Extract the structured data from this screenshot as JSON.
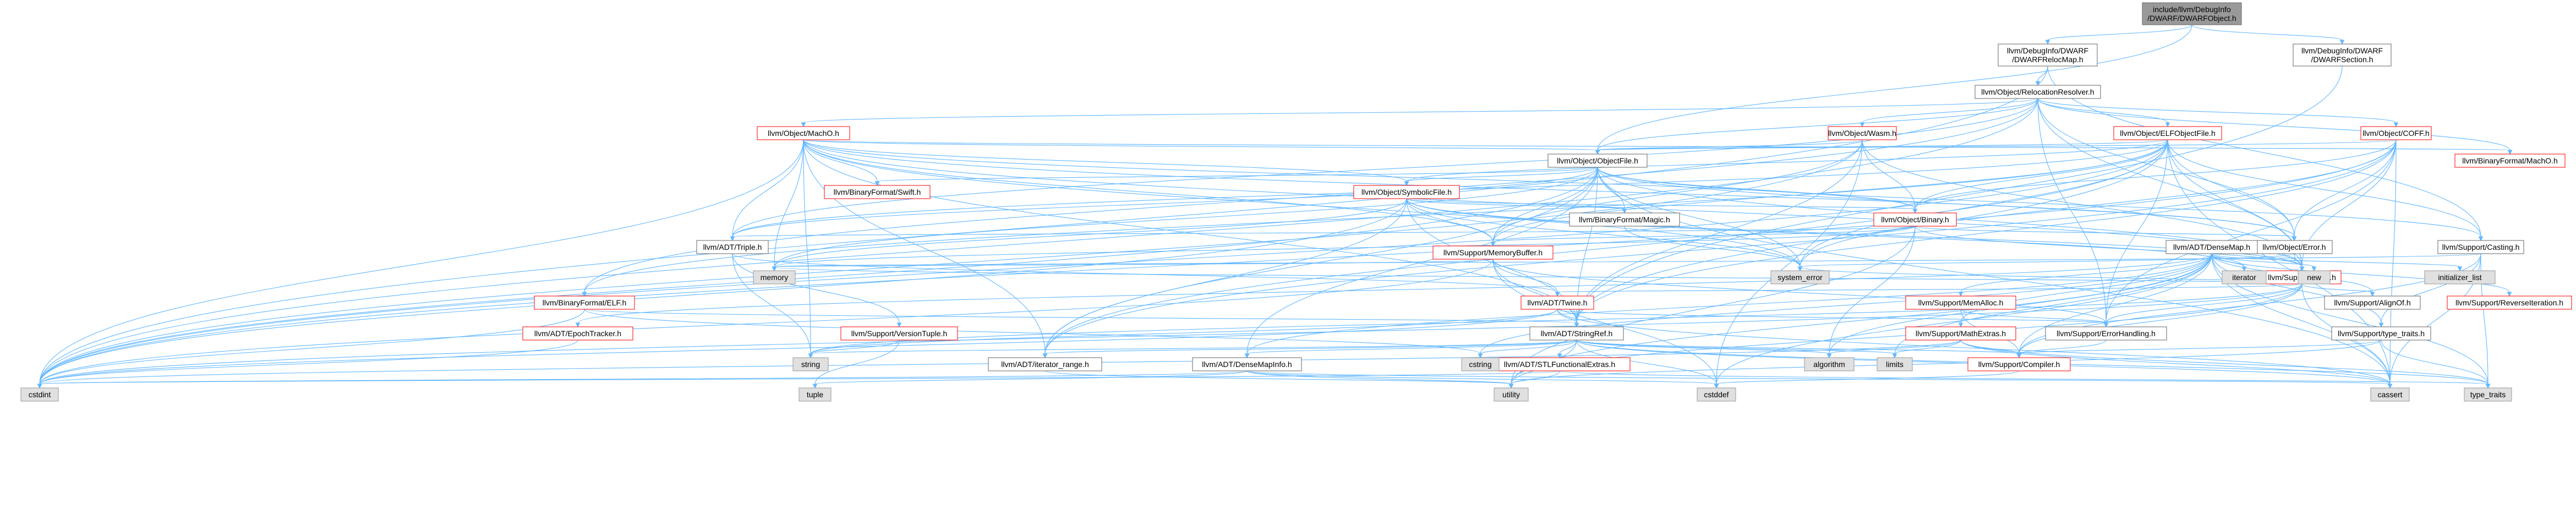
{
  "title": "include/llvm/DebugInfo/DWARF/DWARFObject.h",
  "palette": {
    "edge": "#63b8ff",
    "root_fill": "#999999",
    "node_border": "#666666",
    "truncated_border": "#ff0000",
    "system_fill": "#e0e0e0"
  },
  "nodes": [
    {
      "id": "root",
      "label": [
        "include/llvm/DebugInfo",
        "/DWARF/DWARFObject.h"
      ],
      "kind": "root"
    },
    {
      "id": "relocmap",
      "label": [
        "llvm/DebugInfo/DWARF",
        "/DWARFRelocMap.h"
      ],
      "kind": "plain"
    },
    {
      "id": "dwsection",
      "label": [
        "llvm/DebugInfo/DWARF",
        "/DWARFSection.h"
      ],
      "kind": "plain"
    },
    {
      "id": "relres",
      "label": [
        "llvm/Object/RelocationResolver.h"
      ],
      "kind": "plain"
    },
    {
      "id": "macho",
      "label": [
        "llvm/Object/MachO.h"
      ],
      "kind": "red"
    },
    {
      "id": "wasm",
      "label": [
        "llvm/Object/Wasm.h"
      ],
      "kind": "red"
    },
    {
      "id": "elfobj",
      "label": [
        "llvm/Object/ELFObjectFile.h"
      ],
      "kind": "red"
    },
    {
      "id": "coff",
      "label": [
        "llvm/Object/COFF.h"
      ],
      "kind": "red"
    },
    {
      "id": "objfile",
      "label": [
        "llvm/Object/ObjectFile.h"
      ],
      "kind": "plain"
    },
    {
      "id": "bfmacho",
      "label": [
        "llvm/BinaryFormat/MachO.h"
      ],
      "kind": "red"
    },
    {
      "id": "bfswift",
      "label": [
        "llvm/BinaryFormat/Swift.h"
      ],
      "kind": "red"
    },
    {
      "id": "symfile",
      "label": [
        "llvm/Object/SymbolicFile.h"
      ],
      "kind": "red"
    },
    {
      "id": "bfmagic",
      "label": [
        "llvm/BinaryFormat/Magic.h"
      ],
      "kind": "plain"
    },
    {
      "id": "binary",
      "label": [
        "llvm/Object/Binary.h"
      ],
      "kind": "red"
    },
    {
      "id": "triple",
      "label": [
        "llvm/ADT/Triple.h"
      ],
      "kind": "plain"
    },
    {
      "id": "membuf",
      "label": [
        "llvm/Support/MemoryBuffer.h"
      ],
      "kind": "red"
    },
    {
      "id": "objerr",
      "label": [
        "llvm/Object/Error.h"
      ],
      "kind": "plain"
    },
    {
      "id": "serror",
      "label": [
        "llvm/Support/Error.h"
      ],
      "kind": "red"
    },
    {
      "id": "casting",
      "label": [
        "llvm/Support/Casting.h"
      ],
      "kind": "plain"
    },
    {
      "id": "densemap",
      "label": [
        "llvm/ADT/DenseMap.h"
      ],
      "kind": "plain"
    },
    {
      "id": "bfelf",
      "label": [
        "llvm/BinaryFormat/ELF.h"
      ],
      "kind": "red"
    },
    {
      "id": "twine",
      "label": [
        "llvm/ADT/Twine.h"
      ],
      "kind": "red"
    },
    {
      "id": "epoch",
      "label": [
        "llvm/ADT/EpochTracker.h"
      ],
      "kind": "red"
    },
    {
      "id": "vtuple",
      "label": [
        "llvm/Support/VersionTuple.h"
      ],
      "kind": "red"
    },
    {
      "id": "stringref",
      "label": [
        "llvm/ADT/StringRef.h"
      ],
      "kind": "plain"
    },
    {
      "id": "errhand",
      "label": [
        "llvm/Support/ErrorHandling.h"
      ],
      "kind": "plain"
    },
    {
      "id": "memalloc",
      "label": [
        "llvm/Support/MemAlloc.h"
      ],
      "kind": "red"
    },
    {
      "id": "alignof",
      "label": [
        "llvm/Support/AlignOf.h"
      ],
      "kind": "plain"
    },
    {
      "id": "mathext",
      "label": [
        "llvm/Support/MathExtras.h"
      ],
      "kind": "red"
    },
    {
      "id": "typetraits",
      "label": [
        "llvm/Support/type_traits.h"
      ],
      "kind": "plain"
    },
    {
      "id": "reviter",
      "label": [
        "llvm/Support/ReverseIteration.h"
      ],
      "kind": "red"
    },
    {
      "id": "iterrange",
      "label": [
        "llvm/ADT/iterator_range.h"
      ],
      "kind": "plain"
    },
    {
      "id": "dmapinfo",
      "label": [
        "llvm/ADT/DenseMapInfo.h"
      ],
      "kind": "plain"
    },
    {
      "id": "stlfunc",
      "label": [
        "llvm/ADT/STLFunctionalExtras.h"
      ],
      "kind": "red"
    },
    {
      "id": "compiler",
      "label": [
        "llvm/Support/Compiler.h"
      ],
      "kind": "red"
    },
    {
      "id": "cstdint",
      "label": [
        "cstdint"
      ],
      "kind": "sys"
    },
    {
      "id": "memory",
      "label": [
        "memory"
      ],
      "kind": "sys"
    },
    {
      "id": "syserr",
      "label": [
        "system_error"
      ],
      "kind": "sys"
    },
    {
      "id": "new",
      "label": [
        "new"
      ],
      "kind": "sys"
    },
    {
      "id": "iterator",
      "label": [
        "iterator"
      ],
      "kind": "sys"
    },
    {
      "id": "initlist",
      "label": [
        "initializer_list"
      ],
      "kind": "sys"
    },
    {
      "id": "string",
      "label": [
        "string"
      ],
      "kind": "sys"
    },
    {
      "id": "cstring",
      "label": [
        "cstring"
      ],
      "kind": "sys"
    },
    {
      "id": "algorithm",
      "label": [
        "algorithm"
      ],
      "kind": "sys"
    },
    {
      "id": "limits",
      "label": [
        "limits"
      ],
      "kind": "sys"
    },
    {
      "id": "tuple",
      "label": [
        "tuple"
      ],
      "kind": "sys"
    },
    {
      "id": "utility",
      "label": [
        "utility"
      ],
      "kind": "sys"
    },
    {
      "id": "cstddef",
      "label": [
        "cstddef"
      ],
      "kind": "sys"
    },
    {
      "id": "cassert",
      "label": [
        "cassert"
      ],
      "kind": "sys"
    },
    {
      "id": "typetraitsstd",
      "label": [
        "type_traits"
      ],
      "kind": "sys"
    }
  ],
  "edges": [
    [
      "root",
      "relocmap"
    ],
    [
      "root",
      "dwsection"
    ],
    [
      "root",
      "objfile"
    ],
    [
      "relocmap",
      "relres"
    ],
    [
      "relocmap",
      "cstdint"
    ],
    [
      "relocmap",
      "casting"
    ],
    [
      "dwsection",
      "stringref"
    ],
    [
      "relres",
      "macho"
    ],
    [
      "relres",
      "wasm"
    ],
    [
      "relres",
      "elfobj"
    ],
    [
      "relres",
      "coff"
    ],
    [
      "relres",
      "objfile"
    ],
    [
      "relres",
      "bfmacho"
    ],
    [
      "relres",
      "bfelf"
    ],
    [
      "relres",
      "triple"
    ],
    [
      "relres",
      "serror"
    ],
    [
      "relres",
      "cstdint"
    ],
    [
      "relres",
      "objerr"
    ],
    [
      "relres",
      "errhand"
    ],
    [
      "relres",
      "system_error_dummy"
    ],
    [
      "macho",
      "objfile"
    ],
    [
      "macho",
      "bfmacho"
    ],
    [
      "macho",
      "bfswift"
    ],
    [
      "macho",
      "symfile"
    ],
    [
      "macho",
      "binary"
    ],
    [
      "macho",
      "triple"
    ],
    [
      "macho",
      "serror"
    ],
    [
      "macho",
      "stringref"
    ],
    [
      "macho",
      "iterrange"
    ],
    [
      "macho",
      "cstdint"
    ],
    [
      "macho",
      "memory"
    ],
    [
      "macho",
      "syserr"
    ],
    [
      "macho",
      "string"
    ],
    [
      "macho",
      "objerr"
    ],
    [
      "macho",
      "membuf"
    ],
    [
      "wasm",
      "objfile"
    ],
    [
      "wasm",
      "binary"
    ],
    [
      "wasm",
      "serror"
    ],
    [
      "wasm",
      "membuf"
    ],
    [
      "wasm",
      "cstddef"
    ],
    [
      "wasm",
      "stringref"
    ],
    [
      "wasm",
      "cstdint"
    ],
    [
      "elfobj",
      "objfile"
    ],
    [
      "elfobj",
      "bfelf"
    ],
    [
      "elfobj",
      "binary"
    ],
    [
      "elfobj",
      "objerr"
    ],
    [
      "elfobj",
      "serror"
    ],
    [
      "elfobj",
      "stringref"
    ],
    [
      "elfobj",
      "triple"
    ],
    [
      "elfobj",
      "iterrange"
    ],
    [
      "elfobj",
      "casting"
    ],
    [
      "elfobj",
      "errhand"
    ],
    [
      "elfobj",
      "cassert"
    ],
    [
      "elfobj",
      "cstdint"
    ],
    [
      "elfobj",
      "syserr"
    ],
    [
      "elfobj",
      "membuf"
    ],
    [
      "elfobj",
      "symfile"
    ],
    [
      "coff",
      "objfile"
    ],
    [
      "coff",
      "binary"
    ],
    [
      "coff",
      "objerr"
    ],
    [
      "coff",
      "serror"
    ],
    [
      "coff",
      "errhand"
    ],
    [
      "coff",
      "iterrange"
    ],
    [
      "coff",
      "cassert"
    ],
    [
      "coff",
      "cstdint"
    ],
    [
      "coff",
      "syserr"
    ],
    [
      "coff",
      "stringref"
    ],
    [
      "objfile",
      "symfile"
    ],
    [
      "objfile",
      "bfmagic"
    ],
    [
      "objfile",
      "binary"
    ],
    [
      "objfile",
      "triple"
    ],
    [
      "objfile",
      "membuf"
    ],
    [
      "objfile",
      "objerr"
    ],
    [
      "objfile",
      "serror"
    ],
    [
      "objfile",
      "casting"
    ],
    [
      "objfile",
      "stringref"
    ],
    [
      "objfile",
      "iterrange"
    ],
    [
      "objfile",
      "dmapinfo"
    ],
    [
      "objfile",
      "cassert"
    ],
    [
      "objfile",
      "cstdint"
    ],
    [
      "objfile",
      "memory"
    ],
    [
      "objfile",
      "syserr"
    ],
    [
      "objfile",
      "bfswift"
    ],
    [
      "symfile",
      "bfmagic"
    ],
    [
      "symfile",
      "binary"
    ],
    [
      "symfile",
      "serror"
    ],
    [
      "symfile",
      "membuf"
    ],
    [
      "symfile",
      "iterrange"
    ],
    [
      "symfile",
      "stringref"
    ],
    [
      "symfile",
      "cstdint"
    ],
    [
      "symfile",
      "memory"
    ],
    [
      "symfile",
      "syserr"
    ],
    [
      "symfile",
      "iterator"
    ],
    [
      "symfile",
      "cinttypes"
    ],
    [
      "bfmagic",
      "syserr"
    ],
    [
      "binary",
      "membuf"
    ],
    [
      "binary",
      "serror"
    ],
    [
      "binary",
      "objerr"
    ],
    [
      "binary",
      "triple"
    ],
    [
      "binary",
      "memory"
    ],
    [
      "binary",
      "utility"
    ],
    [
      "binary",
      "algorithm"
    ],
    [
      "triple",
      "twine"
    ],
    [
      "triple",
      "vtuple"
    ],
    [
      "triple",
      "string"
    ],
    [
      "membuf",
      "twine"
    ],
    [
      "membuf",
      "stringref"
    ],
    [
      "membuf",
      "memory"
    ],
    [
      "membuf",
      "cstdint"
    ],
    [
      "membuf",
      "cstddef"
    ],
    [
      "membuf",
      "errhand"
    ],
    [
      "objerr",
      "serror"
    ],
    [
      "objerr",
      "syserr"
    ],
    [
      "serror",
      "errhand"
    ],
    [
      "serror",
      "compiler"
    ],
    [
      "serror",
      "alignof"
    ],
    [
      "serror",
      "memory"
    ],
    [
      "serror",
      "new"
    ],
    [
      "serror",
      "syserr"
    ],
    [
      "serror",
      "string"
    ],
    [
      "serror",
      "utility"
    ],
    [
      "serror",
      "cassert"
    ],
    [
      "serror",
      "cstdint"
    ],
    [
      "serror",
      "twine"
    ],
    [
      "casting",
      "typetraits"
    ],
    [
      "casting",
      "compiler"
    ],
    [
      "casting",
      "cassert"
    ],
    [
      "casting",
      "memory"
    ],
    [
      "casting",
      "typetraitsstd"
    ],
    [
      "densemap",
      "epoch"
    ],
    [
      "densemap",
      "dmapinfo"
    ],
    [
      "densemap",
      "alignof"
    ],
    [
      "densemap",
      "compiler"
    ],
    [
      "densemap",
      "mathext"
    ],
    [
      "densemap",
      "memalloc"
    ],
    [
      "densemap",
      "reviter"
    ],
    [
      "densemap",
      "typetraits"
    ],
    [
      "densemap",
      "algorithm"
    ],
    [
      "densemap",
      "cassert"
    ],
    [
      "densemap",
      "cstddef"
    ],
    [
      "densemap",
      "cstring"
    ],
    [
      "densemap",
      "initlist"
    ],
    [
      "densemap",
      "iterator"
    ],
    [
      "densemap",
      "new"
    ],
    [
      "densemap",
      "typetraitsstd"
    ],
    [
      "densemap",
      "utility"
    ],
    [
      "densemap",
      "limits"
    ],
    [
      "bfelf",
      "cstdint"
    ],
    [
      "bfelf",
      "cstring"
    ],
    [
      "bfelf",
      "stringref"
    ],
    [
      "twine",
      "stringref"
    ],
    [
      "twine",
      "errhand"
    ],
    [
      "twine",
      "cassert"
    ],
    [
      "twine",
      "cstdint"
    ],
    [
      "twine",
      "string"
    ],
    [
      "vtuple",
      "string"
    ],
    [
      "vtuple",
      "tuple"
    ],
    [
      "stringref",
      "stlfunc"
    ],
    [
      "stringref",
      "dmapinfo"
    ],
    [
      "stringref",
      "iterrange"
    ],
    [
      "stringref",
      "compiler"
    ],
    [
      "stringref",
      "algorithm"
    ],
    [
      "stringref",
      "cassert"
    ],
    [
      "stringref",
      "cstddef"
    ],
    [
      "stringref",
      "cstring"
    ],
    [
      "stringref",
      "limits"
    ],
    [
      "stringref",
      "string"
    ],
    [
      "stringref",
      "typetraitsstd"
    ],
    [
      "stringref",
      "utility"
    ],
    [
      "errhand",
      "compiler"
    ],
    [
      "memalloc",
      "compiler"
    ],
    [
      "memalloc",
      "errhand"
    ],
    [
      "mathext",
      "compiler"
    ],
    [
      "mathext",
      "cassert"
    ],
    [
      "mathext",
      "climits_dummy"
    ],
    [
      "mathext",
      "cstdint"
    ],
    [
      "mathext",
      "limits"
    ],
    [
      "mathext",
      "typetraitsstd"
    ],
    [
      "mathext",
      "algorithm"
    ],
    [
      "typetraits",
      "compiler"
    ],
    [
      "typetraits",
      "typetraitsstd"
    ],
    [
      "typetraits",
      "utility"
    ],
    [
      "iterrange",
      "utility"
    ],
    [
      "dmapinfo",
      "cassert"
    ],
    [
      "dmapinfo",
      "cstddef"
    ],
    [
      "dmapinfo",
      "cstdint"
    ],
    [
      "dmapinfo",
      "tuple"
    ],
    [
      "dmapinfo",
      "utility"
    ],
    [
      "stlfunc",
      "cstdint"
    ],
    [
      "stlfunc",
      "typetraitsstd"
    ],
    [
      "stlfunc",
      "utility"
    ],
    [
      "epoch",
      "cstdint"
    ],
    [
      "compiler",
      "cstddef"
    ]
  ]
}
